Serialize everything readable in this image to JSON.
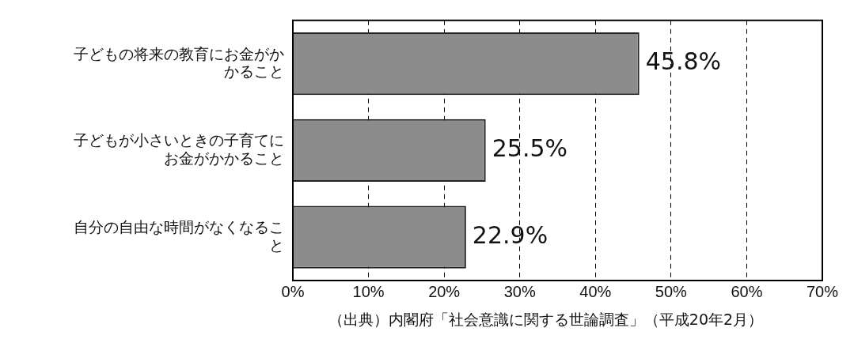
{
  "chart_data": {
    "type": "bar",
    "orientation": "horizontal",
    "categories": [
      "子どもの将来の教育にお金がかかること",
      "子どもが小さいときの子育てにお金がかかること",
      "自分の自由な時間がなくなること"
    ],
    "values": [
      45.8,
      25.5,
      22.9
    ],
    "color": "#8c8c8c",
    "value_labels": [
      "45.8%",
      "25.5%",
      "22.9%"
    ],
    "xlim": [
      0,
      70
    ],
    "xticks": [
      {
        "value": 0,
        "label": "0%"
      },
      {
        "value": 10,
        "label": "10%"
      },
      {
        "value": 20,
        "label": "20%"
      },
      {
        "value": 30,
        "label": "30%"
      },
      {
        "value": 40,
        "label": "40%"
      },
      {
        "value": 50,
        "label": "50%"
      },
      {
        "value": 60,
        "label": "60%"
      },
      {
        "value": 70,
        "label": "70%"
      }
    ],
    "grid": "x",
    "legend": false,
    "annotations": [
      "（出典）内閣府「社会意識に関する世論調査」（平成20年2月）"
    ]
  }
}
